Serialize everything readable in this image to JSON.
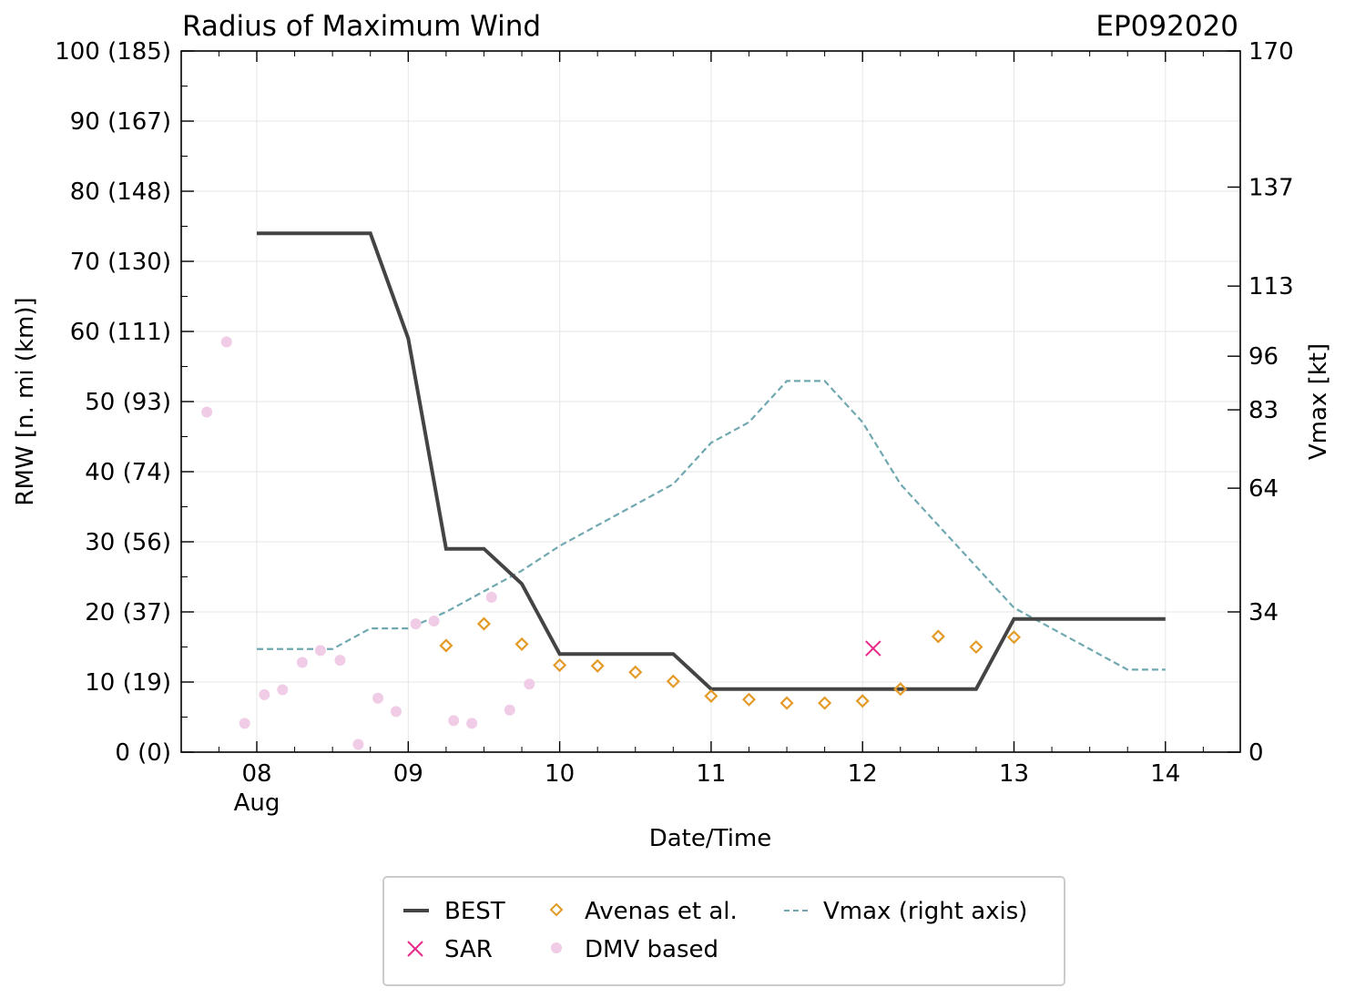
{
  "chart_data": {
    "type": "line",
    "title": "Radius of Maximum Wind",
    "storm_id": "EP092020",
    "xlabel": "Date/Time",
    "ylabel": "RMW [n. mi (km)]",
    "ylabel_right": "Vmax [kt]",
    "xlim": [
      7.5,
      14.5
    ],
    "ylim": [
      0,
      100
    ],
    "ylim_right": [
      0,
      170
    ],
    "x_ticks": [
      {
        "x": 8,
        "label": "08",
        "sublabel": "Aug"
      },
      {
        "x": 9,
        "label": "09"
      },
      {
        "x": 10,
        "label": "10"
      },
      {
        "x": 11,
        "label": "11"
      },
      {
        "x": 12,
        "label": "12"
      },
      {
        "x": 13,
        "label": "13"
      },
      {
        "x": 14,
        "label": "14"
      }
    ],
    "y_ticks": [
      {
        "v": 0,
        "label": "0 (0)"
      },
      {
        "v": 10,
        "label": "10 (19)"
      },
      {
        "v": 20,
        "label": "20 (37)"
      },
      {
        "v": 30,
        "label": "30 (56)"
      },
      {
        "v": 40,
        "label": "40 (74)"
      },
      {
        "v": 50,
        "label": "50 (93)"
      },
      {
        "v": 60,
        "label": "60 (111)"
      },
      {
        "v": 70,
        "label": "70 (130)"
      },
      {
        "v": 80,
        "label": "80 (148)"
      },
      {
        "v": 90,
        "label": "90 (167)"
      },
      {
        "v": 100,
        "label": "100 (185)"
      }
    ],
    "y_ticks_right": [
      {
        "v": 0,
        "label": "0"
      },
      {
        "v": 34,
        "label": "34"
      },
      {
        "v": 64,
        "label": "64"
      },
      {
        "v": 83,
        "label": "83"
      },
      {
        "v": 96,
        "label": "96"
      },
      {
        "v": 113,
        "label": "113"
      },
      {
        "v": 137,
        "label": "137"
      },
      {
        "v": 170,
        "label": "170"
      }
    ],
    "series": [
      {
        "name": "BEST",
        "kind": "line",
        "color": "#444444",
        "x": [
          8.0,
          8.75,
          9.0,
          9.25,
          9.5,
          9.75,
          10.0,
          10.75,
          11.0,
          12.75,
          13.0,
          14.0
        ],
        "y": [
          74,
          74,
          59,
          29,
          29,
          24,
          14,
          14,
          9,
          9,
          19,
          19
        ]
      },
      {
        "name": "Avenas et al.",
        "kind": "diamond",
        "color": "#e39a27",
        "x": [
          9.25,
          9.5,
          9.75,
          10.0,
          10.25,
          10.5,
          10.75,
          11.0,
          11.25,
          11.5,
          11.75,
          12.0,
          12.25,
          12.5,
          12.75,
          13.0
        ],
        "y": [
          15.2,
          18.3,
          15.4,
          12.4,
          12.3,
          11.4,
          10.1,
          8.0,
          7.5,
          7.0,
          7.0,
          7.3,
          9.0,
          16.5,
          15.0,
          16.4
        ]
      },
      {
        "name": "SAR",
        "kind": "x",
        "color": "#e7298a",
        "x": [
          12.07
        ],
        "y": [
          14.8
        ]
      },
      {
        "name": "DMV based",
        "kind": "dot",
        "color": "#f0cce6",
        "x": [
          7.67,
          7.8,
          7.92,
          8.05,
          8.17,
          8.3,
          8.42,
          8.55,
          8.67,
          8.8,
          8.92,
          9.05,
          9.17,
          9.3,
          9.42,
          9.55,
          9.67,
          9.8
        ],
        "y": [
          48.5,
          58.5,
          4.1,
          8.2,
          8.9,
          12.8,
          14.5,
          13.1,
          1.1,
          7.7,
          5.8,
          18.3,
          18.7,
          4.5,
          4.1,
          22.1,
          6.0,
          9.7
        ]
      },
      {
        "name": "Vmax (right axis)",
        "kind": "dashed",
        "axis": "right",
        "color": "#6fa8b0",
        "x": [
          8.0,
          8.5,
          8.75,
          9.0,
          9.25,
          9.5,
          9.75,
          10.0,
          10.5,
          10.75,
          11.0,
          11.25,
          11.5,
          11.75,
          12.0,
          12.25,
          12.5,
          12.75,
          13.0,
          13.25,
          13.5,
          13.75,
          14.0
        ],
        "y": [
          25,
          25,
          30,
          30,
          34,
          39,
          44,
          50,
          60,
          65,
          75,
          80,
          90,
          90,
          80,
          65,
          55,
          45,
          35,
          30,
          25,
          20,
          20
        ]
      }
    ],
    "legend": {
      "placement": "bottom",
      "entries": [
        {
          "label": "BEST",
          "kind": "line"
        },
        {
          "label": "SAR",
          "kind": "x"
        },
        {
          "label": "Avenas et al.",
          "kind": "diamond"
        },
        {
          "label": "DMV based",
          "kind": "dot"
        },
        {
          "label": "Vmax (right axis)",
          "kind": "dashed"
        }
      ]
    },
    "grid": true
  }
}
